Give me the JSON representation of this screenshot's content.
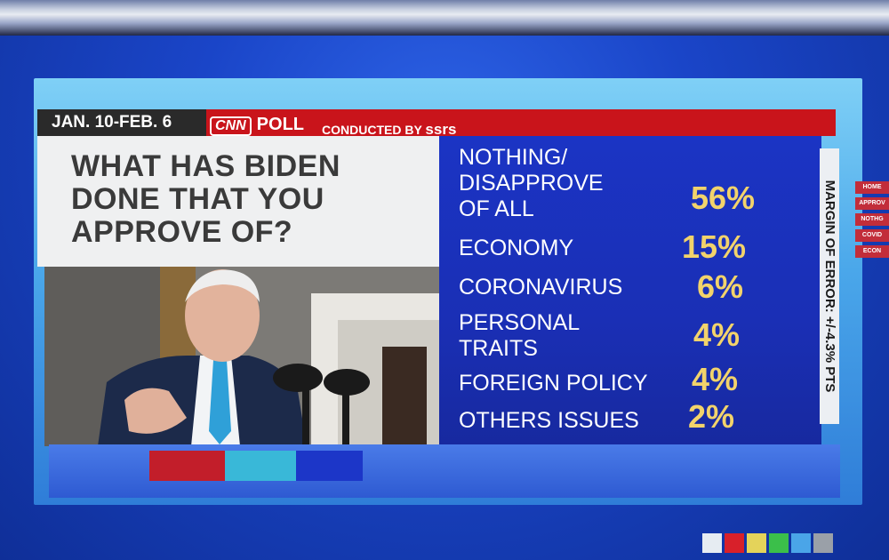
{
  "date_range": "JAN. 10-FEB. 6",
  "network": "CNN",
  "poll_label": "POLL",
  "conducted_by_prefix": "CONDUCTED BY",
  "conducted_by_org": "ssrs",
  "question": "WHAT HAS BIDEN DONE THAT YOU APPROVE OF?",
  "answers": [
    {
      "label": "NOTHING/ DISAPPROVE OF ALL",
      "value": "56%"
    },
    {
      "label": "ECONOMY",
      "value": "15%"
    },
    {
      "label": "CORONAVIRUS",
      "value": "6%"
    },
    {
      "label": "PERSONAL TRAITS",
      "value": "4%"
    },
    {
      "label": "FOREIGN POLICY",
      "value": "4%"
    },
    {
      "label": "OTHERS ISSUES",
      "value": "2%"
    }
  ],
  "margin_of_error": "MARGIN OF ERROR: +/-4.3% PTS",
  "side_menu": [
    "HOME",
    "APPROV",
    "NOTHG",
    "COVID",
    "ECON"
  ],
  "colors": {
    "red_bar": "#c9141b",
    "answer_panel": "#1b34c4",
    "percent": "#f2d36b"
  }
}
